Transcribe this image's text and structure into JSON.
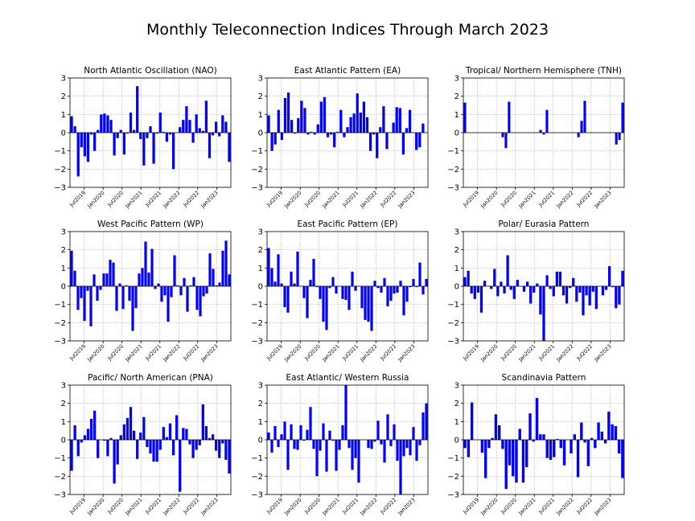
{
  "title": "Monthly Teleconnection Indices Through March 2023",
  "chart_data": [
    {
      "type": "bar",
      "title": "North Atlantic Oscillation (NAO)",
      "ylim": [
        -3,
        3
      ],
      "yticks": [
        -3,
        -2,
        -1,
        0,
        1,
        2,
        3
      ],
      "xticks": [
        "Jul2019",
        "Jan2020",
        "Jul2020",
        "Jan2021",
        "Jul2021",
        "Jan2022",
        "Jul2022",
        "Jan2023"
      ],
      "grid": true,
      "values": [
        0.9,
        0.35,
        -2.4,
        -0.8,
        -1.3,
        -1.6,
        -0.1,
        -1.0,
        0.15,
        1.0,
        1.05,
        0.95,
        0.7,
        -1.25,
        -0.3,
        0.15,
        -1.2,
        -0.05,
        1.1,
        0.15,
        2.55,
        -0.35,
        -1.8,
        -0.3,
        0.35,
        -1.7,
        -0.05,
        1.1,
        0.05,
        -0.5,
        -0.1,
        -2.0,
        0.0,
        0.3,
        0.7,
        1.45,
        0.7,
        -0.55,
        1.0,
        0.25,
        0.1,
        1.75,
        -1.4,
        -0.15,
        0.6,
        -0.2,
        0.95,
        0.6,
        -1.6
      ]
    },
    {
      "type": "bar",
      "title": "East Atlantic Pattern (EA)",
      "ylim": [
        -3,
        3
      ],
      "yticks": [
        -3,
        -2,
        -1,
        0,
        1,
        2,
        3
      ],
      "xticks": [
        "Jul2019",
        "Jan2020",
        "Jul2020",
        "Jan2021",
        "Jul2021",
        "Jan2022",
        "Jul2022",
        "Jan2023"
      ],
      "grid": true,
      "values": [
        0.95,
        -1.0,
        -0.65,
        1.25,
        -0.4,
        1.9,
        2.2,
        0.7,
        -0.05,
        0.8,
        1.75,
        1.35,
        -0.1,
        0.05,
        -0.1,
        0.45,
        1.7,
        1.95,
        -0.25,
        -0.1,
        -0.8,
        0.05,
        1.25,
        -0.25,
        0.3,
        0.85,
        1.05,
        2.15,
        1.1,
        1.7,
        0.85,
        -1.0,
        -0.1,
        -1.4,
        0.3,
        1.45,
        -0.9,
        0.0,
        0.55,
        1.4,
        1.35,
        -1.2,
        0.25,
        1.25,
        0.0,
        -0.95,
        -0.8,
        0.5,
        0.0
      ]
    },
    {
      "type": "bar",
      "title": "Tropical/ Northern Hemisphere (TNH)",
      "ylim": [
        -3,
        3
      ],
      "yticks": [
        -3,
        -2,
        -1,
        0,
        1,
        2,
        3
      ],
      "xticks": [
        "Jul2019",
        "Jan2020",
        "Jul2020",
        "Jan2021",
        "Jul2021",
        "Jan2022",
        "Jul2022",
        "Jan2023"
      ],
      "grid": true,
      "values": [
        1.65,
        0,
        0,
        0,
        0,
        0,
        0,
        0,
        0,
        0,
        0,
        0,
        -0.25,
        -0.85,
        1.7,
        0,
        0,
        0,
        0,
        0,
        0,
        0,
        0,
        0,
        0.15,
        -0.1,
        1.25,
        0,
        0,
        0,
        0,
        0,
        0,
        0,
        0,
        0,
        -0.25,
        0.65,
        1.75,
        0,
        0,
        0,
        0,
        0,
        0,
        0,
        0,
        0,
        -0.65,
        -0.4,
        1.65
      ]
    },
    {
      "type": "bar",
      "title": "West Pacific Pattern (WP)",
      "ylim": [
        -3,
        3
      ],
      "yticks": [
        -3,
        -2,
        -1,
        0,
        1,
        2,
        3
      ],
      "xticks": [
        "Jul2019",
        "Jan2020",
        "Jul2020",
        "Jan2021",
        "Jul2021",
        "Jan2022",
        "Jul2022",
        "Jan2023"
      ],
      "grid": true,
      "values": [
        1.95,
        0.85,
        -1.3,
        -0.65,
        -1.9,
        -0.25,
        -2.2,
        0.65,
        -0.8,
        -0.2,
        0.7,
        0.7,
        1.45,
        1.3,
        -1.35,
        0.15,
        -1.25,
        0.05,
        -0.8,
        -2.45,
        -1.2,
        0.7,
        1.0,
        2.45,
        0.75,
        2.05,
        -0.15,
        0.15,
        -0.85,
        -0.5,
        -1.95,
        -0.6,
        1.7,
        0.05,
        -0.5,
        0.45,
        -1.4,
        0.05,
        0.5,
        -1.3,
        -1.65,
        -0.55,
        -0.4,
        1.8,
        0.95,
        0.05,
        0.2,
        1.95,
        2.5,
        0.65
      ]
    },
    {
      "type": "bar",
      "title": "East Pacific Pattern (EP)",
      "ylim": [
        -3,
        3
      ],
      "yticks": [
        -3,
        -2,
        -1,
        0,
        1,
        2,
        3
      ],
      "xticks": [
        "Jul2019",
        "Jan2020",
        "Jul2020",
        "Jan2021",
        "Jul2021",
        "Jan2022",
        "Jul2022",
        "Jan2023"
      ],
      "grid": true,
      "values": [
        2.1,
        1.0,
        0.25,
        1.75,
        0.15,
        -1.15,
        -1.45,
        0.8,
        0.15,
        1.9,
        0.0,
        -0.65,
        -1.75,
        0.35,
        1.5,
        -0.05,
        -0.7,
        -1.95,
        -2.4,
        -0.1,
        0.5,
        -0.4,
        0.0,
        -0.7,
        -0.75,
        -1.3,
        0.8,
        -0.25,
        0.0,
        -1.2,
        -1.85,
        -1.95,
        -2.45,
        0.3,
        -0.1,
        -0.35,
        0.45,
        -1.1,
        -0.8,
        -0.4,
        -0.35,
        0.3,
        -1.6,
        -0.85,
        -0.05,
        0.4,
        -0.05,
        1.3,
        -0.45,
        0.4
      ]
    },
    {
      "type": "bar",
      "title": "Polar/ Eurasia Pattern",
      "ylim": [
        -3,
        3
      ],
      "yticks": [
        -3,
        -2,
        -1,
        0,
        1,
        2,
        3
      ],
      "xticks": [
        "Jul2019",
        "Jan2020",
        "Jul2020",
        "Jan2021",
        "Jul2021",
        "Jan2022",
        "Jul2022",
        "Jan2023"
      ],
      "grid": true,
      "values": [
        0.5,
        0.85,
        -0.4,
        -0.7,
        -0.35,
        -1.45,
        0.3,
        0.0,
        -0.15,
        0.95,
        -0.55,
        0.25,
        -0.4,
        1.7,
        -0.2,
        -0.7,
        0.35,
        0.0,
        -0.3,
        0.25,
        -0.95,
        -0.35,
        0.15,
        -1.55,
        -3.0,
        0.6,
        -0.15,
        -0.55,
        0.8,
        0.8,
        -0.5,
        -0.95,
        -0.1,
        0.45,
        -0.85,
        -0.35,
        -1.6,
        -0.5,
        -1.05,
        -0.3,
        -1.25,
        0.0,
        -0.5,
        -0.2,
        1.1,
        -0.05,
        -1.2,
        -1.0,
        0.85
      ]
    },
    {
      "type": "bar",
      "title": "Pacific/ North American (PNA)",
      "ylim": [
        -3,
        3
      ],
      "yticks": [
        -3,
        -2,
        -1,
        0,
        1,
        2,
        3
      ],
      "xticks": [
        "Jul2019",
        "Jan2020",
        "Jul2020",
        "Jan2021",
        "Jul2021",
        "Jan2022",
        "Jul2022",
        "Jan2023"
      ],
      "grid": true,
      "values": [
        -1.7,
        0.8,
        -0.9,
        -0.15,
        0.25,
        0.6,
        1.15,
        1.6,
        -1.0,
        0.0,
        -0.05,
        -0.9,
        0.1,
        -2.4,
        -1.35,
        0.25,
        0.85,
        1.2,
        1.8,
        0.5,
        -1.05,
        0.4,
        1.25,
        -0.4,
        -0.75,
        -1.2,
        -1.2,
        -0.55,
        0.7,
        0.15,
        0.9,
        -0.85,
        1.35,
        -2.85,
        0.65,
        0.6,
        -0.25,
        -1.0,
        -0.55,
        -0.3,
        1.95,
        0.75,
        0.1,
        0.3,
        -0.6,
        -1.0,
        -0.2,
        -1.1,
        -1.85
      ]
    },
    {
      "type": "bar",
      "title": "East Atlantic/ Western Russia",
      "ylim": [
        -3,
        3
      ],
      "yticks": [
        -3,
        -2,
        -1,
        0,
        1,
        2,
        3
      ],
      "xticks": [
        "Jul2019",
        "Jan2020",
        "Jul2020",
        "Jan2021",
        "Jul2021",
        "Jan2022",
        "Jul2022",
        "Jan2023"
      ],
      "grid": true,
      "values": [
        0.4,
        -0.7,
        0.75,
        -0.4,
        0.3,
        1.0,
        -1.65,
        0.85,
        -0.5,
        -0.55,
        0.8,
        -0.05,
        0.55,
        1.8,
        -0.5,
        -2.0,
        -0.6,
        0.9,
        -1.75,
        0.5,
        -0.05,
        -1.7,
        -0.55,
        0.8,
        3.0,
        -0.45,
        -1.65,
        -1.0,
        -2.35,
        0.0,
        0.0,
        -0.45,
        -0.5,
        -0.1,
        1.05,
        -0.25,
        -1.25,
        1.4,
        -0.35,
        0.85,
        -1.15,
        -3.0,
        -0.9,
        -0.45,
        -0.85,
        0.7,
        -1.15,
        -0.3,
        1.5,
        2.0
      ]
    },
    {
      "type": "bar",
      "title": "Scandinavia Pattern",
      "ylim": [
        -3,
        3
      ],
      "yticks": [
        -3,
        -2,
        -1,
        0,
        1,
        2,
        3
      ],
      "xticks": [
        "Jul2019",
        "Jan2020",
        "Jul2020",
        "Jan2021",
        "Jul2021",
        "Jan2022",
        "Jul2022",
        "Jan2023"
      ],
      "grid": true,
      "values": [
        -0.45,
        -0.95,
        2.05,
        0.0,
        0.0,
        -0.7,
        -2.1,
        -0.45,
        0.1,
        1.4,
        0.8,
        -0.5,
        -2.7,
        -1.4,
        -2.0,
        -2.35,
        0.6,
        -2.35,
        -1.5,
        1.45,
        -0.1,
        2.3,
        0.3,
        0.3,
        -1.0,
        -1.1,
        -0.95,
        0.05,
        -0.45,
        -1.4,
        0.0,
        -0.75,
        0.3,
        -2.05,
        0.95,
        -0.15,
        -1.45,
        0.1,
        -0.45,
        0.95,
        0.45,
        -0.2,
        1.55,
        0.85,
        0.75,
        -0.75,
        -2.1
      ]
    }
  ]
}
